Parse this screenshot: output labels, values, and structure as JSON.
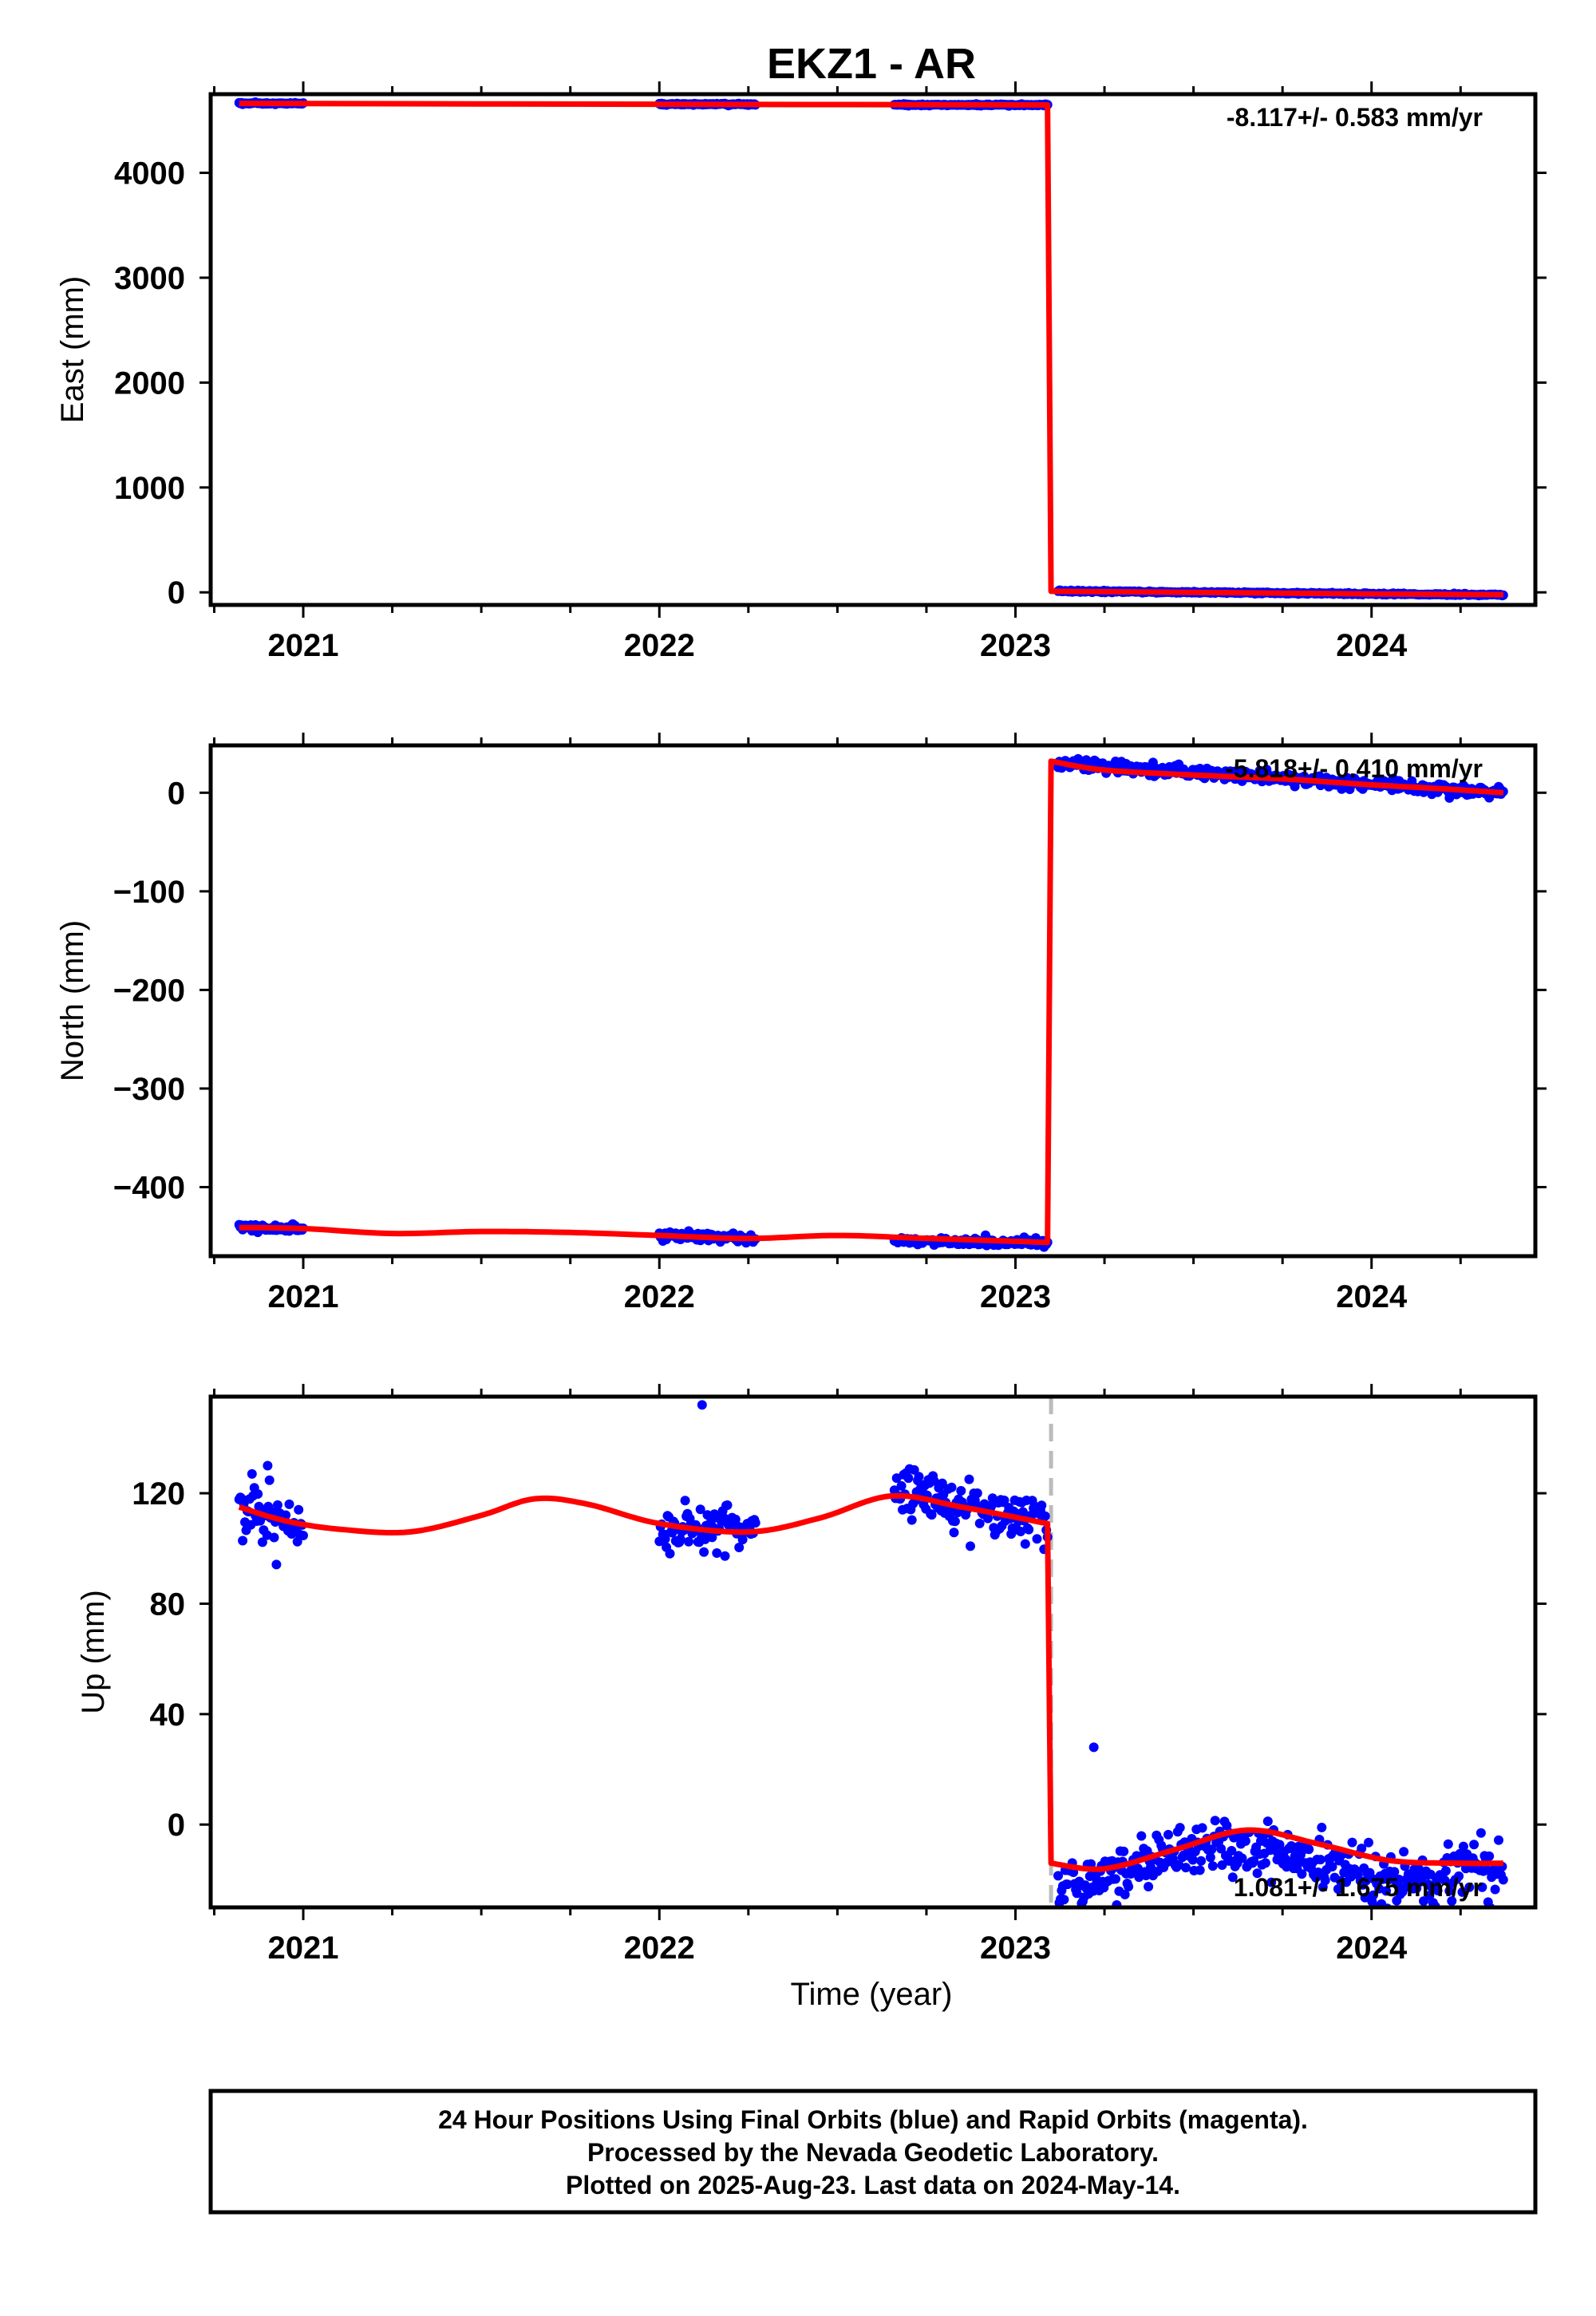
{
  "title": "EKZ1 - AR",
  "x_axis_label": "Time (year)",
  "footer": {
    "line1": "24 Hour Positions Using Final Orbits (blue) and Rapid Orbits (magenta).",
    "line2": "Processed by the Nevada Geodetic Laboratory.",
    "line3": "Plotted on 2025-Aug-23. Last data on 2024-May-14."
  },
  "colors": {
    "data_points": "#0000ff",
    "model_fit": "#ff0000",
    "event_line": "#bbbbbb",
    "frame": "#000000"
  },
  "chart_data": [
    {
      "type": "scatter",
      "ylabel": "East (mm)",
      "xlim": [
        2020.74,
        2024.46
      ],
      "ylim": [
        -120,
        4750
      ],
      "xticks": [
        2021,
        2022,
        2023,
        2024
      ],
      "yticks": [
        0,
        1000,
        2000,
        3000,
        4000
      ],
      "event_line_x": 2023.1,
      "event_line_visible": false,
      "rate_annotation": "-8.117+/- 0.583 mm/yr",
      "series": [
        {
          "role": "data",
          "segments": [
            {
              "x_range": [
                2020.82,
                2021.0
              ],
              "y_start": 4662,
              "y_end": 4660,
              "noise": 4
            },
            {
              "x_range": [
                2022.0,
                2022.27
              ],
              "y_start": 4655,
              "y_end": 4653,
              "noise": 4
            },
            {
              "x_range": [
                2022.66,
                2023.09
              ],
              "y_start": 4649,
              "y_end": 4646,
              "noise": 4
            },
            {
              "x_range": [
                2023.12,
                2024.37
              ],
              "y_start": 12,
              "y_end": -25,
              "noise": 4
            }
          ]
        },
        {
          "role": "model",
          "points": [
            [
              2020.82,
              4662
            ],
            [
              2021.5,
              4657
            ],
            [
              2022.0,
              4654
            ],
            [
              2022.5,
              4651
            ],
            [
              2023.09,
              4647
            ],
            [
              2023.1,
              10
            ],
            [
              2023.5,
              0
            ],
            [
              2024.0,
              -15
            ],
            [
              2024.37,
              -22
            ]
          ]
        }
      ]
    },
    {
      "type": "scatter",
      "ylabel": "North (mm)",
      "xlim": [
        2020.74,
        2024.46
      ],
      "ylim": [
        -470,
        48
      ],
      "xticks": [
        2021,
        2022,
        2023,
        2024
      ],
      "yticks": [
        -400,
        -300,
        -200,
        -100,
        0
      ],
      "event_line_x": 2023.1,
      "event_line_visible": false,
      "rate_annotation": "-5.818+/- 0.410 mm/yr",
      "series": [
        {
          "role": "data",
          "segments": [
            {
              "x_range": [
                2020.82,
                2021.0
              ],
              "y_start": -441,
              "y_end": -443,
              "noise": 2
            },
            {
              "x_range": [
                2022.0,
                2022.27
              ],
              "y_start": -449,
              "y_end": -452,
              "noise": 2
            },
            {
              "x_range": [
                2022.66,
                2023.09
              ],
              "y_start": -454,
              "y_end": -457,
              "noise": 2
            },
            {
              "x_range": [
                2023.12,
                2024.37
              ],
              "y_start": 30,
              "y_end": -1,
              "noise": 3
            }
          ]
        },
        {
          "role": "model",
          "points": [
            [
              2020.82,
              -441
            ],
            [
              2021.0,
              -442
            ],
            [
              2021.25,
              -447
            ],
            [
              2021.5,
              -445
            ],
            [
              2021.75,
              -446
            ],
            [
              2022.0,
              -449
            ],
            [
              2022.25,
              -452
            ],
            [
              2022.5,
              -449
            ],
            [
              2022.75,
              -452
            ],
            [
              2023.09,
              -456
            ],
            [
              2023.1,
              32
            ],
            [
              2023.25,
              23
            ],
            [
              2023.5,
              18
            ],
            [
              2023.75,
              14
            ],
            [
              2024.0,
              8
            ],
            [
              2024.2,
              4
            ],
            [
              2024.37,
              0
            ]
          ]
        }
      ]
    },
    {
      "type": "scatter",
      "ylabel": "Up (mm)",
      "xlim": [
        2020.74,
        2024.46
      ],
      "ylim": [
        -30,
        155
      ],
      "xticks": [
        2021,
        2022,
        2023,
        2024
      ],
      "yticks": [
        0,
        40,
        80,
        120
      ],
      "event_line_x": 2023.1,
      "event_line_visible": true,
      "rate_annotation": "1.081+/- 1.675 mm/yr",
      "series": [
        {
          "role": "data",
          "segments": [
            {
              "x_range": [
                2020.82,
                2021.0
              ],
              "y_start": 114,
              "y_end": 106,
              "noise": 5
            },
            {
              "x_range": [
                2022.0,
                2022.27
              ],
              "y_start": 107,
              "y_end": 108,
              "noise": 5
            },
            {
              "x_range": [
                2022.66,
                2023.09
              ],
              "y_start": 120,
              "y_end": 110,
              "noise": 5
            },
            {
              "x_range": [
                2023.12,
                2024.37
              ],
              "y_start": -15,
              "y_end": -14,
              "noise": 5
            }
          ],
          "outliers": [
            [
              2022.12,
              152
            ],
            [
              2020.9,
              130
            ],
            [
              2023.22,
              28
            ]
          ]
        },
        {
          "role": "model",
          "points": [
            [
              2020.82,
              115
            ],
            [
              2020.95,
              110
            ],
            [
              2021.1,
              107
            ],
            [
              2021.3,
              106
            ],
            [
              2021.5,
              112
            ],
            [
              2021.65,
              118
            ],
            [
              2021.8,
              116
            ],
            [
              2022.0,
              109
            ],
            [
              2022.25,
              106
            ],
            [
              2022.45,
              111
            ],
            [
              2022.65,
              119
            ],
            [
              2022.85,
              115
            ],
            [
              2023.09,
              109
            ],
            [
              2023.1,
              -14
            ],
            [
              2023.25,
              -16
            ],
            [
              2023.45,
              -9
            ],
            [
              2023.65,
              -2
            ],
            [
              2023.85,
              -7
            ],
            [
              2024.05,
              -13
            ],
            [
              2024.25,
              -14
            ],
            [
              2024.37,
              -14
            ]
          ]
        }
      ]
    }
  ]
}
